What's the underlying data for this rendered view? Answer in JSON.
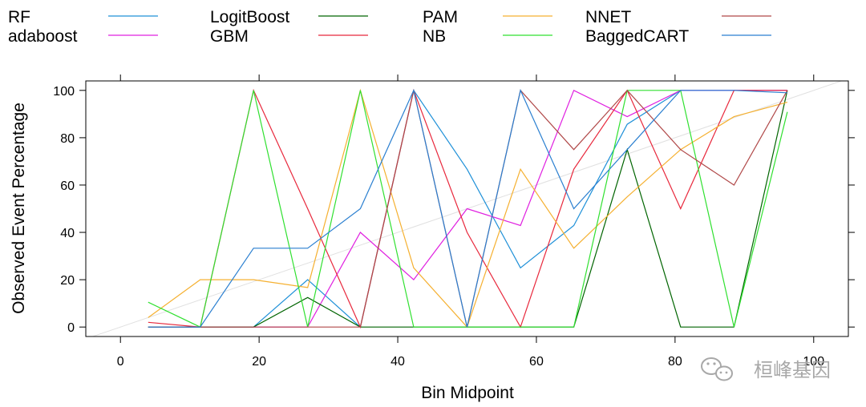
{
  "chart_data": {
    "type": "line",
    "title": "",
    "xlabel": "Bin Midpoint",
    "ylabel": "Observed Event Percentage",
    "xlim": [
      -5,
      105
    ],
    "ylim": [
      -4,
      104
    ],
    "x_ticks": [
      "0",
      "20",
      "40",
      "60",
      "80",
      "100"
    ],
    "y_ticks": [
      "0",
      "20",
      "40",
      "60",
      "80",
      "100"
    ],
    "reference_line": {
      "from": [
        0,
        0
      ],
      "to": [
        105,
        105
      ],
      "color": "#e0e0e0"
    },
    "grid": false,
    "legend_position": "top",
    "series": [
      {
        "name": "RF",
        "color": "#1e90d8",
        "x": [
          4,
          11.5,
          19.2,
          27,
          34.6,
          42.3,
          50,
          57.7,
          65.4,
          73.1,
          80.8,
          88.5,
          96.2
        ],
        "y": [
          0,
          0,
          0,
          20,
          0,
          100,
          66.7,
          25,
          42.9,
          85.7,
          100,
          100,
          100
        ]
      },
      {
        "name": "adaboost",
        "color": "#e020e0",
        "x": [
          4,
          11.5,
          19.2,
          27,
          34.6,
          42.3,
          50,
          57.7,
          65.4,
          73.1,
          80.8,
          88.5,
          96.2
        ],
        "y": [
          0,
          0,
          0,
          0,
          40,
          20,
          50,
          42.9,
          100,
          88.9,
          100,
          100,
          100
        ]
      },
      {
        "name": "LogitBoost",
        "color": "#006400",
        "x": [
          4,
          11.5,
          19.2,
          27,
          34.6,
          42.3,
          50,
          57.7,
          65.4,
          73.1,
          80.8,
          88.5,
          96.2
        ],
        "y": [
          0,
          0,
          0,
          12.5,
          0,
          0,
          0,
          0,
          0,
          75,
          0,
          0,
          100
        ]
      },
      {
        "name": "GBM",
        "color": "#e8283c",
        "x": [
          4,
          11.5,
          19.2,
          27,
          34.6,
          42.3,
          50,
          57.7,
          65.4,
          73.1,
          80.8,
          88.5,
          96.2
        ],
        "y": [
          2,
          0,
          100,
          50,
          0,
          100,
          40,
          0,
          66.7,
          100,
          50,
          100,
          100
        ]
      },
      {
        "name": "PAM",
        "color": "#f5b030",
        "x": [
          4,
          11.5,
          19.2,
          27,
          34.6,
          42.3,
          50,
          57.7,
          65.4,
          73.1,
          80.8,
          88.5,
          96.2
        ],
        "y": [
          4,
          20,
          20,
          16.7,
          100,
          25,
          0,
          66.7,
          33.3,
          55,
          75,
          88.9,
          95
        ]
      },
      {
        "name": "NB",
        "color": "#30e030",
        "x": [
          4,
          11.5,
          19.2,
          27,
          34.6,
          42.3,
          50,
          57.7,
          65.4,
          73.1,
          80.8,
          88.5,
          96.2
        ],
        "y": [
          10.5,
          0,
          100,
          0,
          100,
          0,
          0,
          0,
          0,
          100,
          100,
          0,
          90.9
        ]
      },
      {
        "name": "NNET",
        "color": "#b04848",
        "x": [
          4,
          11.5,
          19.2,
          27,
          34.6,
          42.3,
          50,
          57.7,
          65.4,
          73.1,
          80.8,
          88.5,
          96.2
        ],
        "y": [
          0,
          0,
          0,
          0,
          0,
          100,
          0,
          100,
          75,
          100,
          75,
          60,
          100
        ]
      },
      {
        "name": "BaggedCART",
        "color": "#2a7fd0",
        "x": [
          4,
          11.5,
          19.2,
          27,
          34.6,
          42.3,
          50,
          57.7,
          65.4,
          73.1,
          80.8,
          88.5,
          96.2
        ],
        "y": [
          0,
          0,
          33.3,
          33.3,
          50,
          100,
          0,
          100,
          50,
          75,
          100,
          100,
          99
        ]
      }
    ]
  },
  "watermark": {
    "icon": "wechat-icon",
    "text": "桓峰基因"
  }
}
